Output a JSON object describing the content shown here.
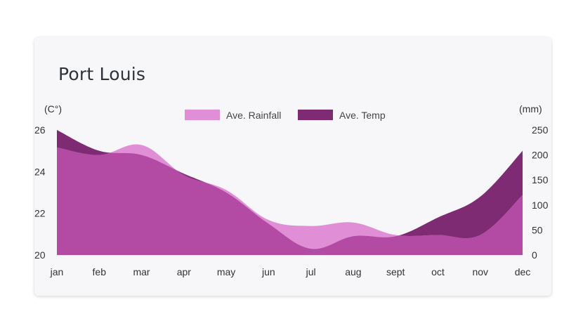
{
  "card": {
    "title": "Port Louis"
  },
  "chart_data": {
    "type": "area",
    "title": "Port Louis",
    "categories": [
      "jan",
      "feb",
      "mar",
      "apr",
      "may",
      "jun",
      "jul",
      "aug",
      "sept",
      "oct",
      "nov",
      "dec"
    ],
    "series": [
      {
        "name": "Ave. Rainfall",
        "axis": "right",
        "color": "#e08fd6",
        "values": [
          215,
          200,
          220,
          160,
          130,
          70,
          58,
          65,
          40,
          40,
          40,
          120
        ]
      },
      {
        "name": "Ave. Temp",
        "axis": "left",
        "color": "#7f2b73",
        "values": [
          26,
          25,
          24.8,
          23.9,
          23.0,
          21.5,
          20.3,
          20.9,
          20.9,
          21.8,
          22.8,
          25.0
        ]
      }
    ],
    "y_left": {
      "label": "(C°)",
      "ticks": [
        20,
        22,
        24,
        26
      ],
      "range": [
        20,
        26
      ]
    },
    "y_right": {
      "label": "(mm)",
      "ticks": [
        0,
        50,
        100,
        150,
        200,
        250
      ],
      "range": [
        0,
        250
      ]
    },
    "overlap_color": "#b34aa4",
    "legend": "top-center",
    "grid": false
  }
}
